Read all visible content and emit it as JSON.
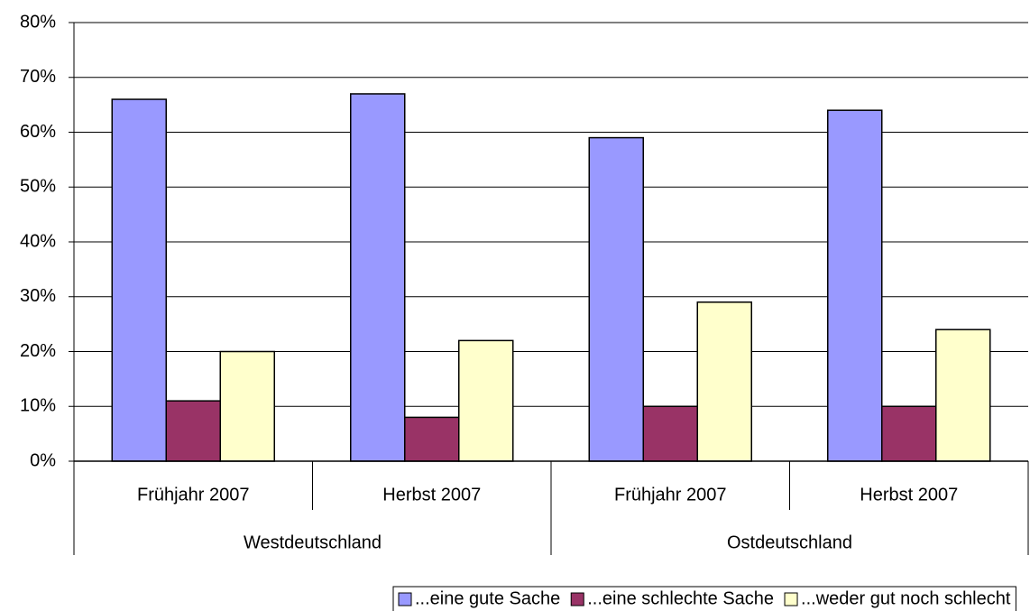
{
  "chart_data": {
    "type": "bar",
    "categories": [
      "Frühjahr 2007",
      "Herbst 2007",
      "Frühjahr 2007",
      "Herbst 2007"
    ],
    "groups": [
      "Westdeutschland",
      "Ostdeutschland"
    ],
    "series": [
      {
        "name": "...eine gute Sache",
        "color": "#9999ff",
        "values": [
          66,
          67,
          59,
          64
        ]
      },
      {
        "name": "...eine schlechte Sache",
        "color": "#993366",
        "values": [
          11,
          8,
          10,
          10
        ]
      },
      {
        "name": "...weder gut noch schlecht",
        "color": "#ffffcc",
        "values": [
          20,
          22,
          29,
          24
        ]
      }
    ],
    "ylim": [
      0,
      80
    ],
    "yticks": [
      {
        "value": 0,
        "label": "0%"
      },
      {
        "value": 10,
        "label": "10%"
      },
      {
        "value": 20,
        "label": "20%"
      },
      {
        "value": 30,
        "label": "30%"
      },
      {
        "value": 40,
        "label": "40%"
      },
      {
        "value": 50,
        "label": "50%"
      },
      {
        "value": 60,
        "label": "60%"
      },
      {
        "value": 70,
        "label": "70%"
      },
      {
        "value": 80,
        "label": "80%"
      }
    ],
    "grid": true,
    "legend": "bottom"
  }
}
